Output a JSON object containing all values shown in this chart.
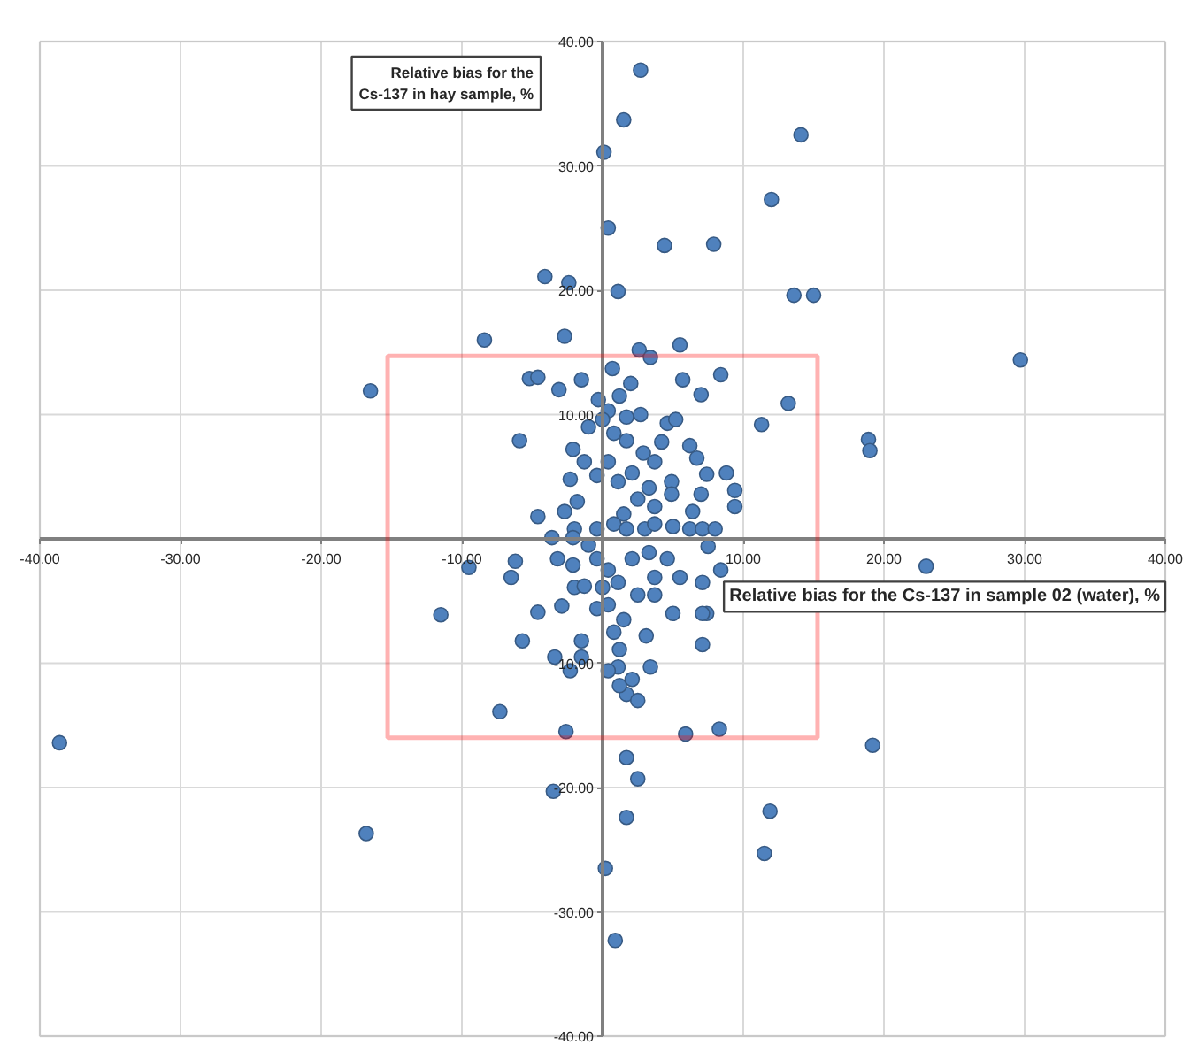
{
  "chart_data": {
    "type": "scatter",
    "xlabel": "Relative bias for the Cs-137 in sample 02 (water), %",
    "ylabel": "Relative bias for the Cs-137 in hay sample, %",
    "xlim": [
      -40,
      40
    ],
    "ylim": [
      -40,
      40
    ],
    "xticks": [
      {
        "value": -40,
        "label": "-40.00"
      },
      {
        "value": -30,
        "label": "-30.00"
      },
      {
        "value": -20,
        "label": "-20.00"
      },
      {
        "value": -10,
        "label": "-10.00"
      },
      {
        "value": 10,
        "label": "10.00"
      },
      {
        "value": 20,
        "label": "20.00"
      },
      {
        "value": 30,
        "label": "30.00"
      },
      {
        "value": 40,
        "label": "40.00"
      }
    ],
    "yticks": [
      {
        "value": -40,
        "label": "-40.00"
      },
      {
        "value": -30,
        "label": "-30.00"
      },
      {
        "value": -20,
        "label": "-20.00"
      },
      {
        "value": -10,
        "label": "-10.00"
      },
      {
        "value": 10,
        "label": "10.00"
      },
      {
        "value": 20,
        "label": "20.00"
      },
      {
        "value": 30,
        "label": "30.00"
      },
      {
        "value": 40,
        "label": "40.00"
      }
    ],
    "grid": true,
    "marker": "circle",
    "color": "#4f81bd",
    "x": [
      2.7,
      1.5,
      0.1,
      14.1,
      12.0,
      0.4,
      4.4,
      7.9,
      -4.1,
      -2.4,
      1.1,
      13.6,
      15.0,
      -8.4,
      -2.7,
      2.6,
      3.4,
      5.5,
      29.7,
      -16.5,
      18.9,
      19.0,
      13.2,
      11.3,
      8.4,
      23.0,
      -38.6,
      -7.3,
      -2.6,
      5.9,
      8.3,
      19.2,
      1.7,
      2.5,
      -3.5,
      11.9,
      1.7,
      -16.8,
      11.5,
      0.2,
      0.9,
      -5.2,
      -4.6,
      -3.1,
      -1.5,
      0.7,
      5.7,
      7.0,
      -5.9,
      -0.3,
      0.4,
      1.2,
      0.0,
      1.7,
      2.7,
      4.6,
      5.2,
      6.2,
      6.7,
      7.4,
      8.8,
      9.4,
      9.4,
      -2.1,
      -1.3,
      -2.3,
      1.7,
      2.9,
      3.7,
      2.1,
      3.3,
      4.9,
      4.9,
      2.5,
      3.7,
      0.4,
      -0.4,
      1.1,
      7.0,
      6.4,
      -4.6,
      -2.7,
      -2.0,
      -3.6,
      -2.1,
      -0.4,
      0.8,
      1.7,
      3.0,
      3.7,
      5.0,
      6.2,
      7.1,
      8.0,
      7.5,
      8.4,
      7.1,
      7.4,
      5.5,
      -9.5,
      -6.2,
      -6.5,
      -11.5,
      -4.6,
      -2.9,
      -3.2,
      -2.1,
      -2.0,
      -1.3,
      -0.4,
      0.4,
      0.0,
      1.1,
      0.4,
      -0.4,
      2.1,
      3.3,
      4.6,
      3.7,
      2.5,
      3.7,
      5.0,
      7.1,
      -5.7,
      -1.5,
      -1.5,
      -3.4,
      -2.3,
      0.8,
      1.2,
      1.1,
      3.1,
      3.4,
      2.1,
      1.7,
      2.5,
      7.1,
      0.4,
      1.2,
      0.8,
      -1.0,
      2.0,
      -1.8,
      1.5,
      4.2,
      -1.0,
      1.5
    ],
    "values": [
      37.7,
      33.7,
      31.1,
      32.5,
      27.3,
      25.0,
      23.6,
      23.7,
      21.1,
      20.6,
      19.9,
      19.6,
      19.6,
      16.0,
      16.3,
      15.2,
      14.6,
      15.6,
      14.4,
      11.9,
      8.0,
      7.1,
      10.9,
      9.2,
      13.2,
      -2.2,
      -16.4,
      -13.9,
      -15.5,
      -15.7,
      -15.3,
      -16.6,
      -17.6,
      -19.3,
      -20.3,
      -21.9,
      -22.4,
      -23.7,
      -25.3,
      -26.5,
      -32.3,
      12.9,
      13.0,
      12.0,
      12.8,
      13.7,
      12.8,
      11.6,
      7.9,
      11.2,
      10.3,
      11.5,
      9.6,
      9.8,
      10.0,
      9.3,
      9.6,
      7.5,
      6.5,
      5.2,
      5.3,
      3.9,
      2.6,
      7.2,
      6.2,
      4.8,
      7.9,
      6.9,
      6.2,
      5.3,
      4.1,
      4.6,
      3.6,
      3.2,
      2.6,
      6.2,
      5.1,
      4.6,
      3.6,
      2.2,
      1.8,
      2.2,
      0.8,
      0.1,
      0.1,
      0.8,
      1.2,
      0.8,
      0.8,
      1.2,
      1.0,
      0.8,
      0.8,
      0.8,
      -0.6,
      -2.5,
      -3.5,
      -6.0,
      -3.1,
      -2.3,
      -1.8,
      -3.1,
      -6.1,
      -5.9,
      -5.4,
      -1.6,
      -2.1,
      -3.9,
      -3.8,
      -1.6,
      -2.5,
      -3.9,
      -3.5,
      -5.3,
      -5.6,
      -1.6,
      -1.1,
      -1.6,
      -3.1,
      -4.5,
      -4.5,
      -6.0,
      -6.0,
      -8.2,
      -8.2,
      -9.5,
      -9.5,
      -10.6,
      -7.5,
      -8.9,
      -10.3,
      -7.8,
      -10.3,
      -11.3,
      -12.5,
      -13.0,
      -8.5,
      -10.6,
      -11.8,
      8.5,
      9.0,
      12.5,
      3.0,
      2.0,
      7.8,
      -0.5,
      -6.5
    ]
  }
}
